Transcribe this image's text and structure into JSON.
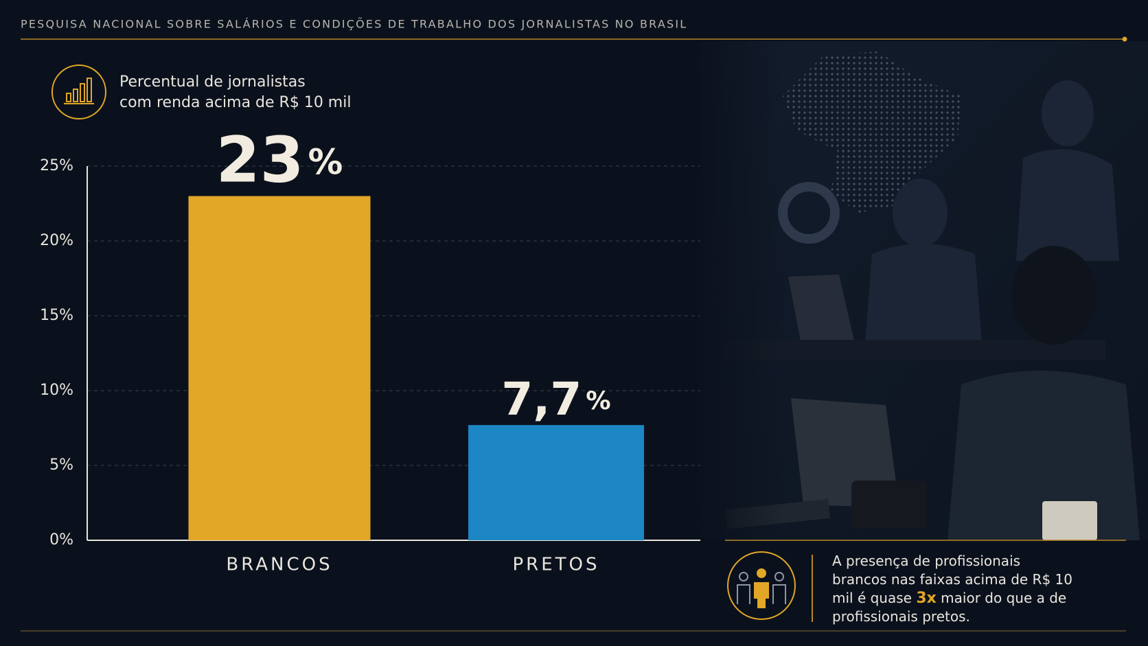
{
  "header": {
    "title": "PESQUISA NACIONAL SOBRE SALÁRIOS E CONDIÇÕES DE TRABALHO DOS JORNALISTAS NO BRASIL"
  },
  "chart_data": {
    "type": "bar",
    "title": [
      "Percentual de jornalistas",
      "com renda acima de R$ 10 mil"
    ],
    "categories": [
      "BRANCOS",
      "PRETOS"
    ],
    "values": [
      23,
      7.7
    ],
    "value_labels": [
      "23%",
      "7,7%"
    ],
    "colors": [
      "#e2a727",
      "#1d86c4"
    ],
    "ylim": [
      0,
      25
    ],
    "yticks": [
      {
        "value": 0,
        "label": "0%"
      },
      {
        "value": 5,
        "label": "5%"
      },
      {
        "value": 10,
        "label": "10%"
      },
      {
        "value": 15,
        "label": "15%"
      },
      {
        "value": 20,
        "label": "20%"
      },
      {
        "value": 25,
        "label": "25%"
      }
    ],
    "grid": true
  },
  "callout": {
    "before": "A presença de profissionais brancos nas faixas acima de R$ 10 mil é quase ",
    "highlight": "3x",
    "after": " maior do que a de profissionais pretos."
  }
}
